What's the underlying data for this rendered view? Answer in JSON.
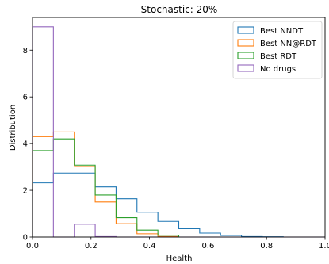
{
  "chart_data": {
    "type": "histogram-step",
    "title": "Stochastic: 20%",
    "xlabel": "Health",
    "ylabel": "Distribution",
    "xlim": [
      0.0,
      1.0
    ],
    "ylim": [
      0,
      9.4
    ],
    "xticks": [
      0.0,
      0.2,
      0.4,
      0.6,
      0.8,
      1.0
    ],
    "xtick_labels": [
      "0.0",
      "0.2",
      "0.4",
      "0.6",
      "0.8",
      "1.0"
    ],
    "yticks": [
      0,
      2,
      4,
      6,
      8
    ],
    "ytick_labels": [
      "0",
      "2",
      "4",
      "6",
      "8"
    ],
    "bin_edges": [
      0.0,
      0.0714,
      0.1429,
      0.2143,
      0.2857,
      0.3571,
      0.4286,
      0.5,
      0.5714,
      0.6429,
      0.7143,
      0.7857,
      0.8571,
      0.9286,
      1.0
    ],
    "legend_position": "top-right",
    "grid": false,
    "series": [
      {
        "name": "Best NNDT",
        "color": "#1f77b4",
        "values": [
          2.32,
          2.74,
          2.74,
          2.15,
          1.64,
          1.06,
          0.67,
          0.36,
          0.17,
          0.07,
          0.02,
          0.01,
          0.0,
          0.0
        ]
      },
      {
        "name": "Best NN@RDT",
        "color": "#ff7f0e",
        "values": [
          4.3,
          4.5,
          3.02,
          1.5,
          0.57,
          0.14,
          0.02,
          0.0,
          0.0,
          0.0,
          0.0,
          0.0,
          0.0,
          0.0
        ]
      },
      {
        "name": "Best RDT",
        "color": "#2ca02c",
        "values": [
          3.7,
          4.2,
          3.08,
          1.8,
          0.83,
          0.3,
          0.08,
          0.0,
          0.0,
          0.0,
          0.0,
          0.0,
          0.0,
          0.0
        ]
      },
      {
        "name": "No drugs",
        "color": "#9467bd",
        "values": [
          9.0,
          0.0,
          0.55,
          0.02,
          0.0,
          0.0,
          0.0,
          0.0,
          0.0,
          0.0,
          0.0,
          0.0,
          0.0,
          0.0
        ]
      }
    ]
  }
}
